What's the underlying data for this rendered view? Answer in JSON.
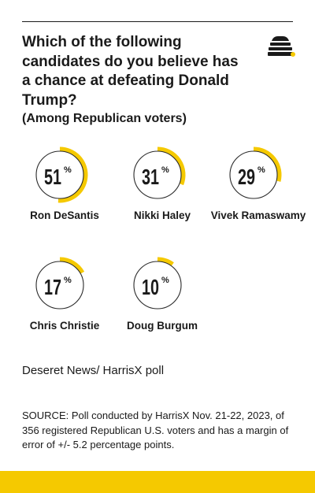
{
  "header": {
    "title": "Which of the following candidates do you believe has a chance at defeating Donald Trump?",
    "subtitle": "(Among Republican voters)"
  },
  "colors": {
    "accent": "#F5C900",
    "ring": "#2a2a2a",
    "text": "#1a1a1a"
  },
  "logo": {
    "icon": "beehive-icon"
  },
  "chart_data": {
    "type": "donut",
    "title": "Which of the following candidates do you believe has a chance at defeating Donald Trump?",
    "subtitle": "(Among Republican voters)",
    "unit": "%",
    "categories": [
      "Ron DeSantis",
      "Nikki Haley",
      "Vivek Ramaswamy",
      "Chris Christie",
      "Doug Burgum"
    ],
    "values": [
      51,
      31,
      29,
      17,
      10
    ]
  },
  "source": {
    "label": "Deseret News/ HarrisX poll",
    "note": "SOURCE: Poll conducted by HarrisX Nov. 21-22, 2023, of 356 registered Republican U.S. voters and has a margin of error of +/- 5.2 percentage points."
  }
}
